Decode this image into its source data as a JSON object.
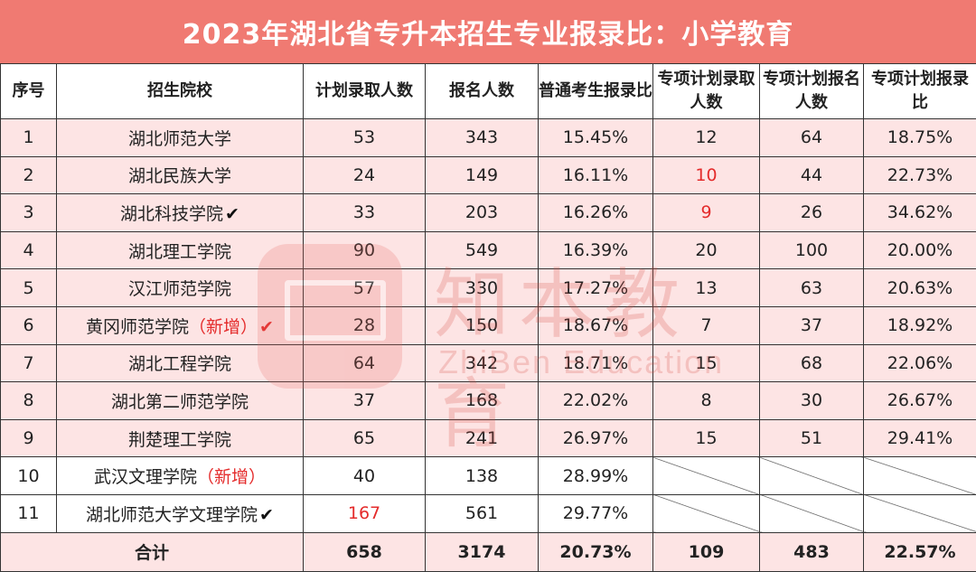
{
  "title": "2023年湖北省专升本招生专业报录比：小学教育",
  "headers": [
    "序号",
    "招生院校",
    "计划录取人数",
    "报名人数",
    "普通考生报录比",
    "专项计划录取人数",
    "专项计划报名人数",
    "专项计划报录比"
  ],
  "rows": [
    {
      "no": "1",
      "school": "湖北师范大学",
      "tag": "",
      "check": "",
      "plan": "53",
      "applicants": "343",
      "ratio": "15.45%",
      "sp_plan": "12",
      "sp_apply": "64",
      "sp_ratio": "18.75%"
    },
    {
      "no": "2",
      "school": "湖北民族大学",
      "tag": "",
      "check": "",
      "plan": "24",
      "applicants": "149",
      "ratio": "16.11%",
      "sp_plan": "10",
      "sp_apply": "44",
      "sp_ratio": "22.73%"
    },
    {
      "no": "3",
      "school": "湖北科技学院",
      "tag": "",
      "check": "✔",
      "plan": "33",
      "applicants": "203",
      "ratio": "16.26%",
      "sp_plan": "9",
      "sp_apply": "26",
      "sp_ratio": "34.62%"
    },
    {
      "no": "4",
      "school": "湖北理工学院",
      "tag": "",
      "check": "",
      "plan": "90",
      "applicants": "549",
      "ratio": "16.39%",
      "sp_plan": "20",
      "sp_apply": "100",
      "sp_ratio": "20.00%"
    },
    {
      "no": "5",
      "school": "汉江师范学院",
      "tag": "",
      "check": "",
      "plan": "57",
      "applicants": "330",
      "ratio": "17.27%",
      "sp_plan": "13",
      "sp_apply": "63",
      "sp_ratio": "20.63%"
    },
    {
      "no": "6",
      "school": "黄冈师范学院",
      "tag": "（新增）",
      "check": "✔",
      "plan": "28",
      "applicants": "150",
      "ratio": "18.67%",
      "sp_plan": "7",
      "sp_apply": "37",
      "sp_ratio": "18.92%"
    },
    {
      "no": "7",
      "school": "湖北工程学院",
      "tag": "",
      "check": "",
      "plan": "64",
      "applicants": "342",
      "ratio": "18.71%",
      "sp_plan": "15",
      "sp_apply": "68",
      "sp_ratio": "22.06%"
    },
    {
      "no": "8",
      "school": "湖北第二师范学院",
      "tag": "",
      "check": "",
      "plan": "37",
      "applicants": "168",
      "ratio": "22.02%",
      "sp_plan": "8",
      "sp_apply": "30",
      "sp_ratio": "26.67%"
    },
    {
      "no": "9",
      "school": "荆楚理工学院",
      "tag": "",
      "check": "",
      "plan": "65",
      "applicants": "241",
      "ratio": "26.97%",
      "sp_plan": "15",
      "sp_apply": "51",
      "sp_ratio": "29.41%"
    },
    {
      "no": "10",
      "school": "武汉文理学院",
      "tag": "（新增）",
      "check": "",
      "plan": "40",
      "applicants": "138",
      "ratio": "28.99%",
      "sp_plan": "",
      "sp_apply": "",
      "sp_ratio": ""
    },
    {
      "no": "11",
      "school": "湖北师范大学文理学院",
      "tag": "",
      "check": "✔",
      "plan": "167",
      "applicants": "561",
      "ratio": "29.77%",
      "sp_plan": "",
      "sp_apply": "",
      "sp_ratio": ""
    }
  ],
  "total": {
    "label": "合计",
    "plan": "658",
    "applicants": "3174",
    "ratio": "20.73%",
    "sp_plan": "109",
    "sp_apply": "483",
    "sp_ratio": "22.57%"
  },
  "watermark": {
    "text": "知本教育",
    "sub": "ZhiBen Education"
  },
  "colors": {
    "title_bg": "#f07a72",
    "row_pink": "#fde4e4",
    "highlight_red": "#e42b2b"
  }
}
